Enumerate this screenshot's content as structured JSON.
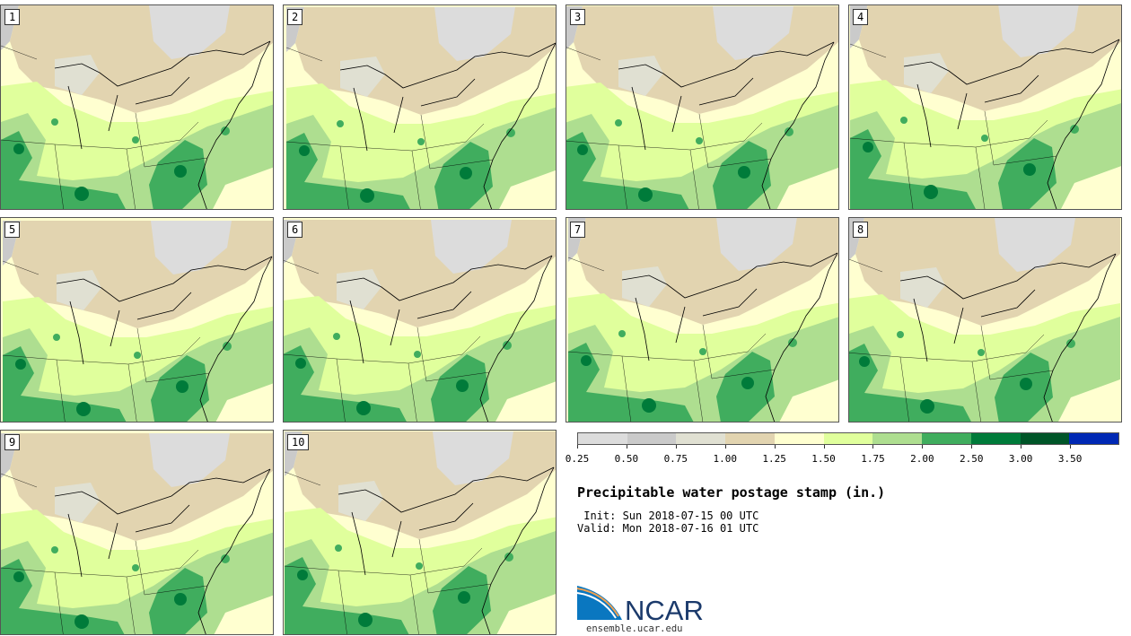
{
  "chart_data": {
    "type": "heatmap",
    "title": "Precipitable water postage stamp (in.)",
    "init": " Init: Sun 2018-07-15 00 UTC",
    "valid": "Valid: Mon 2018-07-16 01 UTC",
    "members": [
      "1",
      "2",
      "3",
      "4",
      "5",
      "6",
      "7",
      "8",
      "9",
      "10"
    ],
    "colorbar": {
      "tick_labels": [
        "0.25",
        "0.50",
        "0.75",
        "1.00",
        "1.25",
        "1.50",
        "1.75",
        "2.00",
        "2.50",
        "3.00",
        "3.50"
      ],
      "colors": [
        "#dcdcdc",
        "#cacaca",
        "#e0e0d2",
        "#e2d4b0",
        "#ffffd0",
        "#e0ff9c",
        "#aede90",
        "#40ad5e",
        "#007b3a",
        "#005528",
        "#0028b4"
      ]
    }
  },
  "footer": {
    "site": "ensemble.ucar.edu",
    "logo_text": "NCAR"
  }
}
